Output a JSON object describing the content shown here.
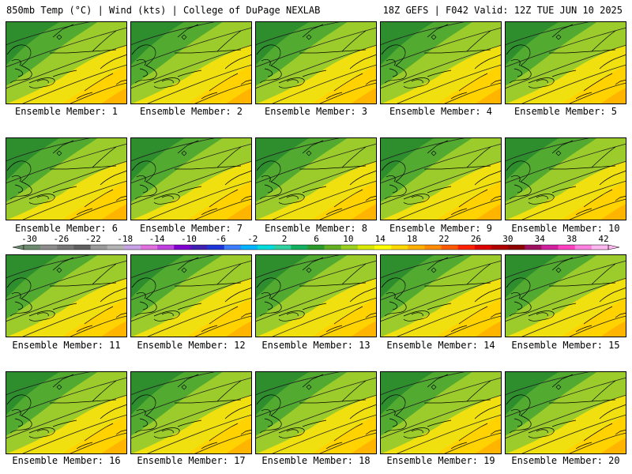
{
  "header": {
    "left": "850mb Temp (°C) | Wind (kts) | College of DuPage NEXLAB",
    "right": "18Z GEFS | F042 Valid: 12Z TUE JUN 10 2025"
  },
  "panels": [
    {
      "label": "Ensemble Member: 1"
    },
    {
      "label": "Ensemble Member: 2"
    },
    {
      "label": "Ensemble Member: 3"
    },
    {
      "label": "Ensemble Member: 4"
    },
    {
      "label": "Ensemble Member: 5"
    },
    {
      "label": "Ensemble Member: 6"
    },
    {
      "label": "Ensemble Member: 7"
    },
    {
      "label": "Ensemble Member: 8"
    },
    {
      "label": "Ensemble Member: 9"
    },
    {
      "label": "Ensemble Member: 10"
    },
    {
      "label": "Ensemble Member: 11"
    },
    {
      "label": "Ensemble Member: 12"
    },
    {
      "label": "Ensemble Member: 13"
    },
    {
      "label": "Ensemble Member: 14"
    },
    {
      "label": "Ensemble Member: 15"
    },
    {
      "label": "Ensemble Member: 16"
    },
    {
      "label": "Ensemble Member: 17"
    },
    {
      "label": "Ensemble Member: 18"
    },
    {
      "label": "Ensemble Member: 19"
    },
    {
      "label": "Ensemble Member: 20"
    }
  ],
  "colorbar": {
    "ticks": [
      "-30",
      "-26",
      "-22",
      "-18",
      "-14",
      "-10",
      "-6",
      "-2",
      "2",
      "6",
      "10",
      "14",
      "18",
      "22",
      "26",
      "30",
      "34",
      "38",
      "42"
    ],
    "colors": [
      "#6e8a6e",
      "#8c8c8c",
      "#767676",
      "#5f5f5f",
      "#9a9a9a",
      "#b4b4b4",
      "#c8a2e6",
      "#e070e0",
      "#c040e0",
      "#8000d0",
      "#4020b0",
      "#1c34d8",
      "#3c7cff",
      "#00b4ff",
      "#00dcdc",
      "#30d0a0",
      "#10b060",
      "#2a9a2a",
      "#60b020",
      "#9cd020",
      "#d8e800",
      "#ffff00",
      "#ffd800",
      "#ffb000",
      "#ff8c00",
      "#ff5a00",
      "#ff2000",
      "#dc0000",
      "#b00000",
      "#8c0000",
      "#a01060",
      "#d020a0",
      "#ff40c0",
      "#ff80e0",
      "#ffb8f0"
    ]
  }
}
